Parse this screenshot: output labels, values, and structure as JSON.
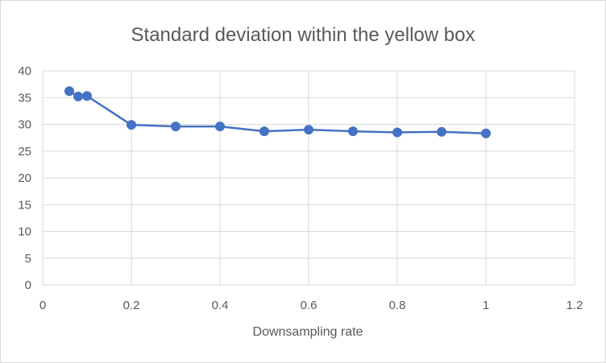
{
  "chart_data": {
    "type": "scatter",
    "title": "Standard deviation within the yellow box",
    "xlabel": "Downsampling rate",
    "ylabel": "",
    "xlim": [
      0,
      1.2
    ],
    "ylim": [
      0,
      40
    ],
    "x_ticks": [
      0,
      0.2,
      0.4,
      0.6,
      0.8,
      1,
      1.2
    ],
    "x_tick_labels": [
      "0",
      "0.2",
      "0.4",
      "0.6",
      "0.8",
      "1",
      "1.2"
    ],
    "y_ticks": [
      0,
      5,
      10,
      15,
      20,
      25,
      30,
      35,
      40
    ],
    "y_tick_labels": [
      "0",
      "5",
      "10",
      "15",
      "20",
      "25",
      "30",
      "35",
      "40"
    ],
    "grid": true,
    "legend": "none",
    "series": [
      {
        "x": [
          0.06,
          0.08,
          0.1,
          0.2,
          0.3,
          0.4,
          0.5,
          0.6,
          0.7,
          0.8,
          0.9,
          1.0
        ],
        "y": [
          36.2,
          35.2,
          35.3,
          29.9,
          29.6,
          29.6,
          28.7,
          29.0,
          28.7,
          28.5,
          28.6,
          28.3
        ],
        "color": "#4472c4",
        "markers": true,
        "line": true
      }
    ]
  }
}
